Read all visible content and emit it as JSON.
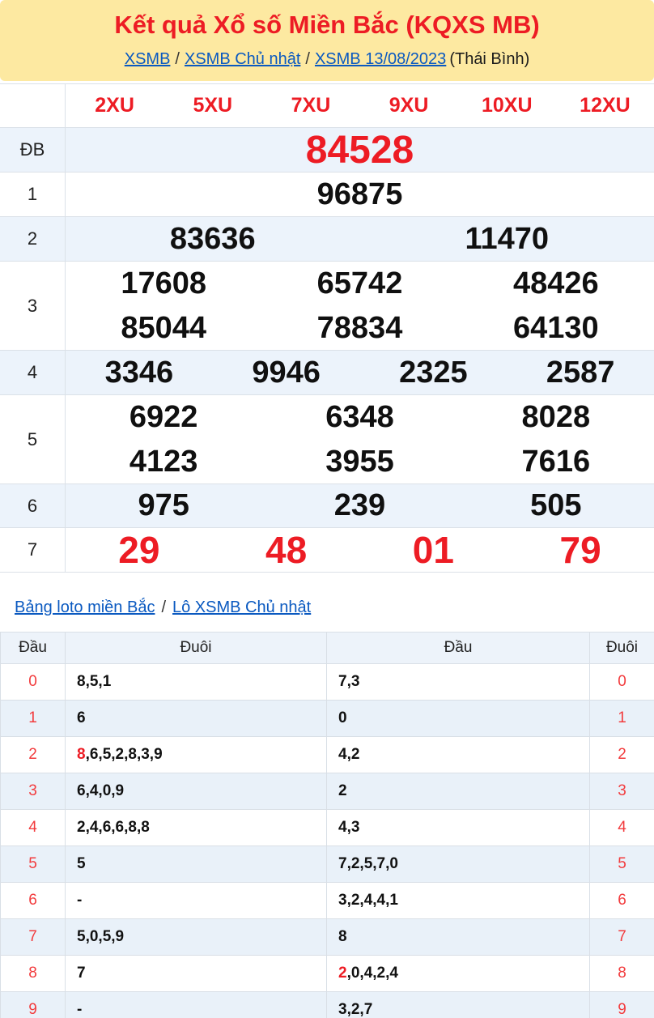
{
  "header": {
    "title": "Kết quả Xổ số Miền Bắc (KQXS MB)",
    "separator": "/",
    "breadcrumb": [
      {
        "label": "XSMB"
      },
      {
        "label": "XSMB Chủ nhật"
      },
      {
        "label": "XSMB 13/08/2023"
      }
    ],
    "breadcrumb_suffix": "(Thái Bình)"
  },
  "colors": {
    "accent_red": "#ed1c24",
    "loto_digit_red": "#f23b3d",
    "link_blue": "#0a59c0",
    "header_yellow": "#fde9a1",
    "shaded_row_blue": "#ecf3fb"
  },
  "results_table": {
    "columns": [
      "2XU",
      "5XU",
      "7XU",
      "9XU",
      "10XU",
      "12XU"
    ],
    "rows": [
      {
        "label": "ĐB",
        "lines": [
          [
            "84528"
          ]
        ]
      },
      {
        "label": "1",
        "lines": [
          [
            "96875"
          ]
        ]
      },
      {
        "label": "2",
        "lines": [
          [
            "83636",
            "11470"
          ]
        ]
      },
      {
        "label": "3",
        "lines": [
          [
            "17608",
            "65742",
            "48426"
          ],
          [
            "85044",
            "78834",
            "64130"
          ]
        ]
      },
      {
        "label": "4",
        "lines": [
          [
            "3346",
            "9946",
            "2325",
            "2587"
          ]
        ]
      },
      {
        "label": "5",
        "lines": [
          [
            "6922",
            "6348",
            "8028"
          ],
          [
            "4123",
            "3955",
            "7616"
          ]
        ]
      },
      {
        "label": "6",
        "lines": [
          [
            "975",
            "239",
            "505"
          ]
        ]
      },
      {
        "label": "7",
        "lines": [
          [
            "29",
            "48",
            "01",
            "79"
          ]
        ]
      }
    ]
  },
  "loto_links": {
    "separator": "/",
    "items": [
      {
        "label": "Bảng loto miền Bắc"
      },
      {
        "label": "Lô XSMB Chủ nhật"
      }
    ]
  },
  "loto": {
    "headers": [
      "Đầu",
      "Đuôi",
      "Đầu",
      "Đuôi"
    ],
    "rows": [
      {
        "head": "0",
        "tail_list": {
          "hl": "",
          "rest": "8,5,1"
        },
        "head_list": {
          "hl": "",
          "rest": "7,3"
        },
        "tail": "0"
      },
      {
        "head": "1",
        "tail_list": {
          "hl": "",
          "rest": "6"
        },
        "head_list": {
          "hl": "",
          "rest": "0"
        },
        "tail": "1"
      },
      {
        "head": "2",
        "tail_list": {
          "hl": "8",
          "rest": ",6,5,2,8,3,9"
        },
        "head_list": {
          "hl": "",
          "rest": "4,2"
        },
        "tail": "2"
      },
      {
        "head": "3",
        "tail_list": {
          "hl": "",
          "rest": "6,4,0,9"
        },
        "head_list": {
          "hl": "",
          "rest": "2"
        },
        "tail": "3"
      },
      {
        "head": "4",
        "tail_list": {
          "hl": "",
          "rest": "2,4,6,6,8,8"
        },
        "head_list": {
          "hl": "",
          "rest": "4,3"
        },
        "tail": "4"
      },
      {
        "head": "5",
        "tail_list": {
          "hl": "",
          "rest": "5"
        },
        "head_list": {
          "hl": "",
          "rest": "7,2,5,7,0"
        },
        "tail": "5"
      },
      {
        "head": "6",
        "tail_list": {
          "hl": "",
          "rest": "-"
        },
        "head_list": {
          "hl": "",
          "rest": "3,2,4,4,1"
        },
        "tail": "6"
      },
      {
        "head": "7",
        "tail_list": {
          "hl": "",
          "rest": "5,0,5,9"
        },
        "head_list": {
          "hl": "",
          "rest": "8"
        },
        "tail": "7"
      },
      {
        "head": "8",
        "tail_list": {
          "hl": "",
          "rest": "7"
        },
        "head_list": {
          "hl": "2",
          "rest": ",0,4,2,4"
        },
        "tail": "8"
      },
      {
        "head": "9",
        "tail_list": {
          "hl": "",
          "rest": "-"
        },
        "head_list": {
          "hl": "",
          "rest": "3,2,7"
        },
        "tail": "9"
      }
    ]
  }
}
